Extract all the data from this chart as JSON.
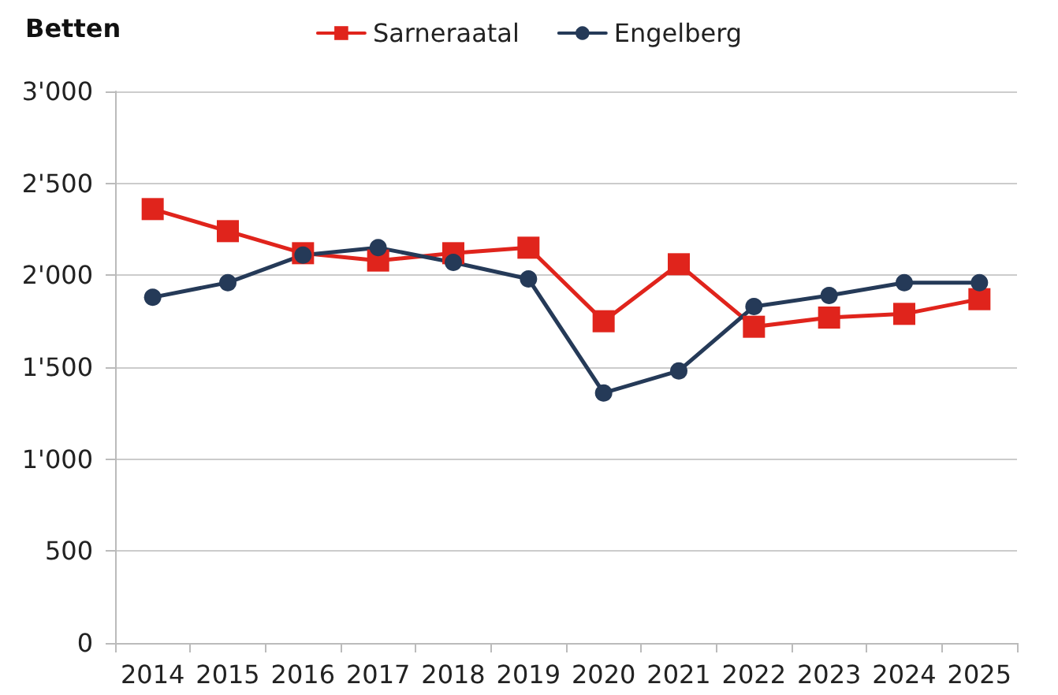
{
  "chart_data": {
    "type": "line",
    "ylabel": "Betten",
    "categories": [
      "2014",
      "2015",
      "2016",
      "2017",
      "2018",
      "2019",
      "2020",
      "2021",
      "2022",
      "2023",
      "2024",
      "2025"
    ],
    "series": [
      {
        "name": "Sarneraatal",
        "color": "#e0241c",
        "marker": "square",
        "values": [
          2360,
          2240,
          2120,
          2080,
          2120,
          2150,
          1750,
          2060,
          1720,
          1770,
          1790,
          1870
        ]
      },
      {
        "name": "Engelberg",
        "color": "#253a58",
        "marker": "circle",
        "values": [
          1880,
          1960,
          2110,
          2150,
          2070,
          1980,
          1360,
          1480,
          1830,
          1890,
          1960,
          1960
        ]
      }
    ],
    "ylim": [
      0,
      3000
    ],
    "yticks": [
      {
        "value": 0,
        "label": "0"
      },
      {
        "value": 500,
        "label": "500"
      },
      {
        "value": 1000,
        "label": "1'000"
      },
      {
        "value": 1500,
        "label": "1'500"
      },
      {
        "value": 2000,
        "label": "2'000"
      },
      {
        "value": 2500,
        "label": "2'500"
      },
      {
        "value": 3000,
        "label": "3'000"
      }
    ],
    "grid": "y",
    "legend": "top",
    "line_style": "solid"
  }
}
